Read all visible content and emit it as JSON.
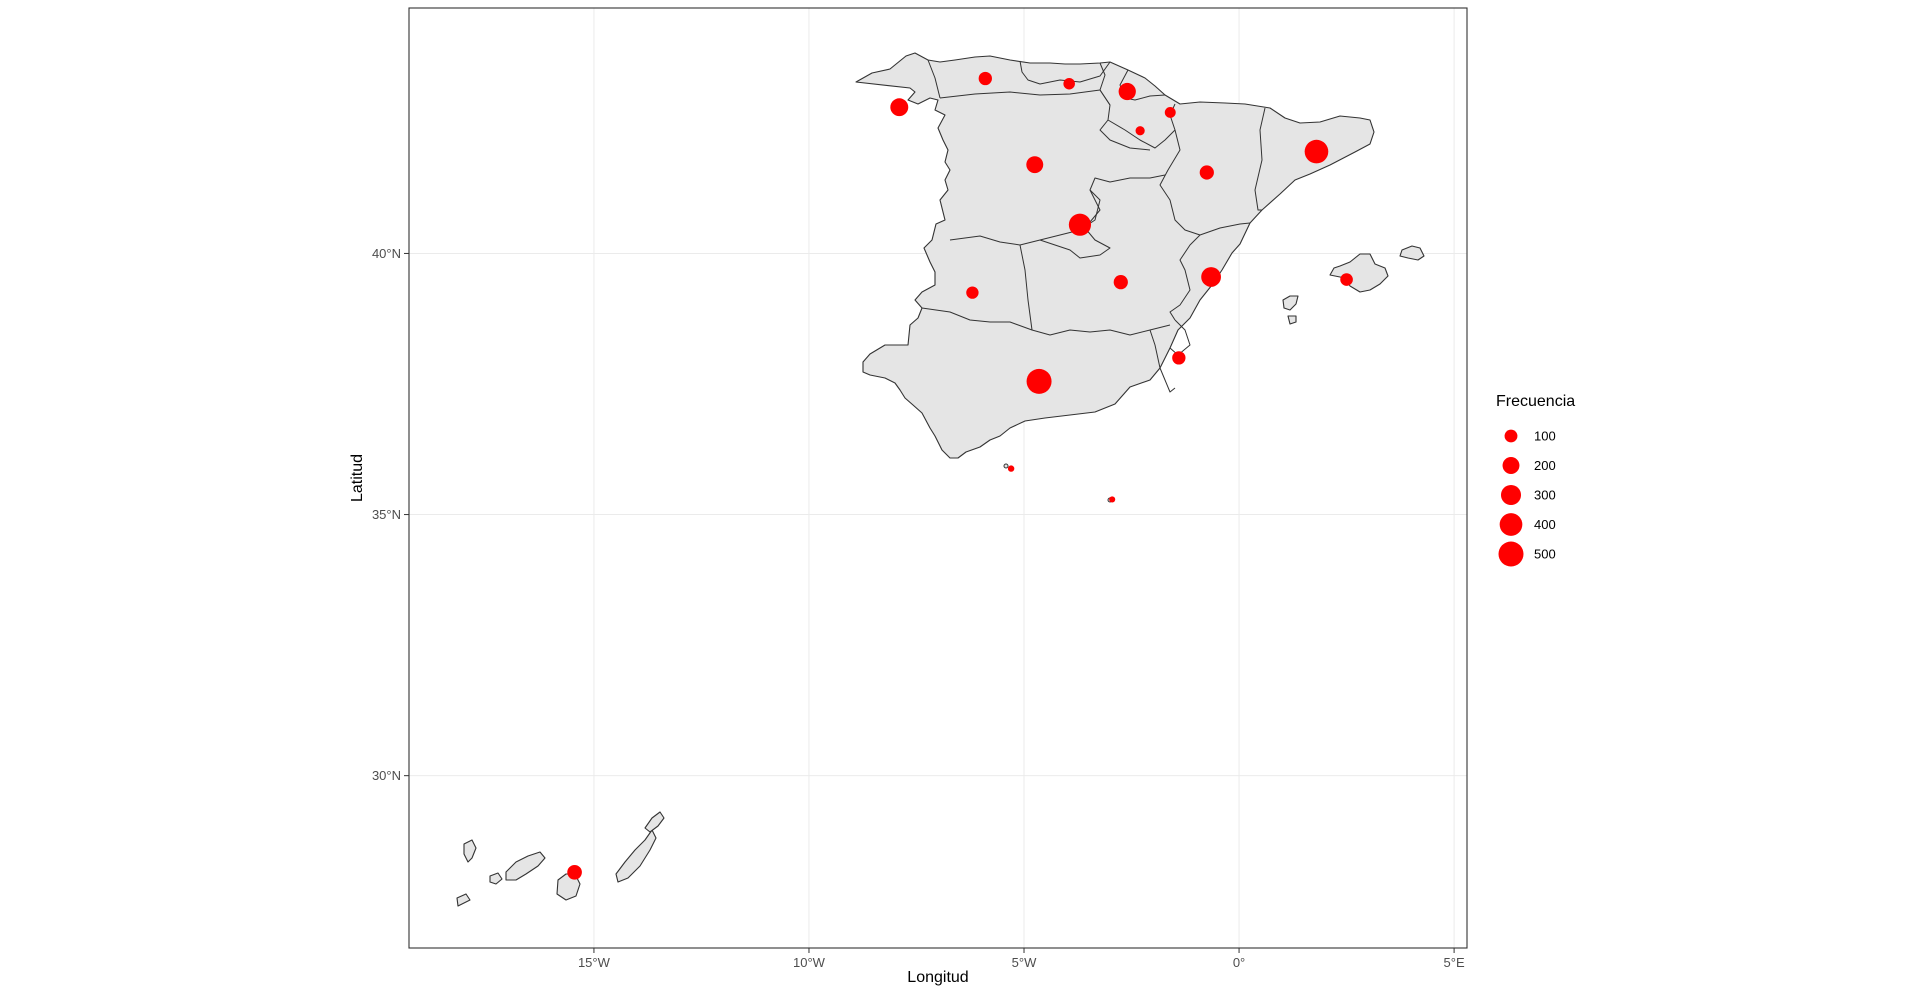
{
  "chart_data": {
    "type": "scatter",
    "xlabel": "Longitud",
    "ylabel": "Latitud",
    "xlim": [
      -19.3,
      5.3
    ],
    "ylim": [
      26.7,
      44.7
    ],
    "x_ticks": [
      {
        "value": -15,
        "label": "15°W"
      },
      {
        "value": -10,
        "label": "10°W"
      },
      {
        "value": -5,
        "label": "5°W"
      },
      {
        "value": 0,
        "label": "0°"
      },
      {
        "value": 5,
        "label": "5°E"
      }
    ],
    "y_ticks": [
      {
        "value": 30,
        "label": "30°N"
      },
      {
        "value": 35,
        "label": "35°N"
      },
      {
        "value": 40,
        "label": "40°N"
      }
    ],
    "grid": true,
    "point_color": "#ff0000",
    "land_fill": "#e5e5e5",
    "legend": {
      "title": "Frecuencia",
      "position": "right",
      "entries": [
        {
          "label": "100",
          "value": 100
        },
        {
          "label": "200",
          "value": 200
        },
        {
          "label": "300",
          "value": 300
        },
        {
          "label": "400",
          "value": 400
        },
        {
          "label": "500",
          "value": 500
        }
      ]
    },
    "points": [
      {
        "lon": -7.9,
        "lat": 42.8,
        "freq": 230
      },
      {
        "lon": -5.9,
        "lat": 43.35,
        "freq": 110
      },
      {
        "lon": -3.95,
        "lat": 43.25,
        "freq": 75
      },
      {
        "lon": -2.6,
        "lat": 43.1,
        "freq": 210
      },
      {
        "lon": -1.6,
        "lat": 42.7,
        "freq": 65
      },
      {
        "lon": -2.3,
        "lat": 42.35,
        "freq": 40
      },
      {
        "lon": -4.75,
        "lat": 41.7,
        "freq": 200
      },
      {
        "lon": -0.75,
        "lat": 41.55,
        "freq": 130
      },
      {
        "lon": 1.8,
        "lat": 41.95,
        "freq": 440
      },
      {
        "lon": -3.7,
        "lat": 40.55,
        "freq": 380
      },
      {
        "lon": -2.75,
        "lat": 39.45,
        "freq": 130
      },
      {
        "lon": -0.65,
        "lat": 39.55,
        "freq": 290
      },
      {
        "lon": 2.5,
        "lat": 39.5,
        "freq": 95
      },
      {
        "lon": -6.2,
        "lat": 39.25,
        "freq": 90
      },
      {
        "lon": -1.4,
        "lat": 38.0,
        "freq": 110
      },
      {
        "lon": -4.65,
        "lat": 37.55,
        "freq": 500
      },
      {
        "lon": -5.3,
        "lat": 35.88,
        "freq": 12
      },
      {
        "lon": -2.95,
        "lat": 35.29,
        "freq": 10
      },
      {
        "lon": -15.45,
        "lat": 28.15,
        "freq": 140
      }
    ]
  }
}
